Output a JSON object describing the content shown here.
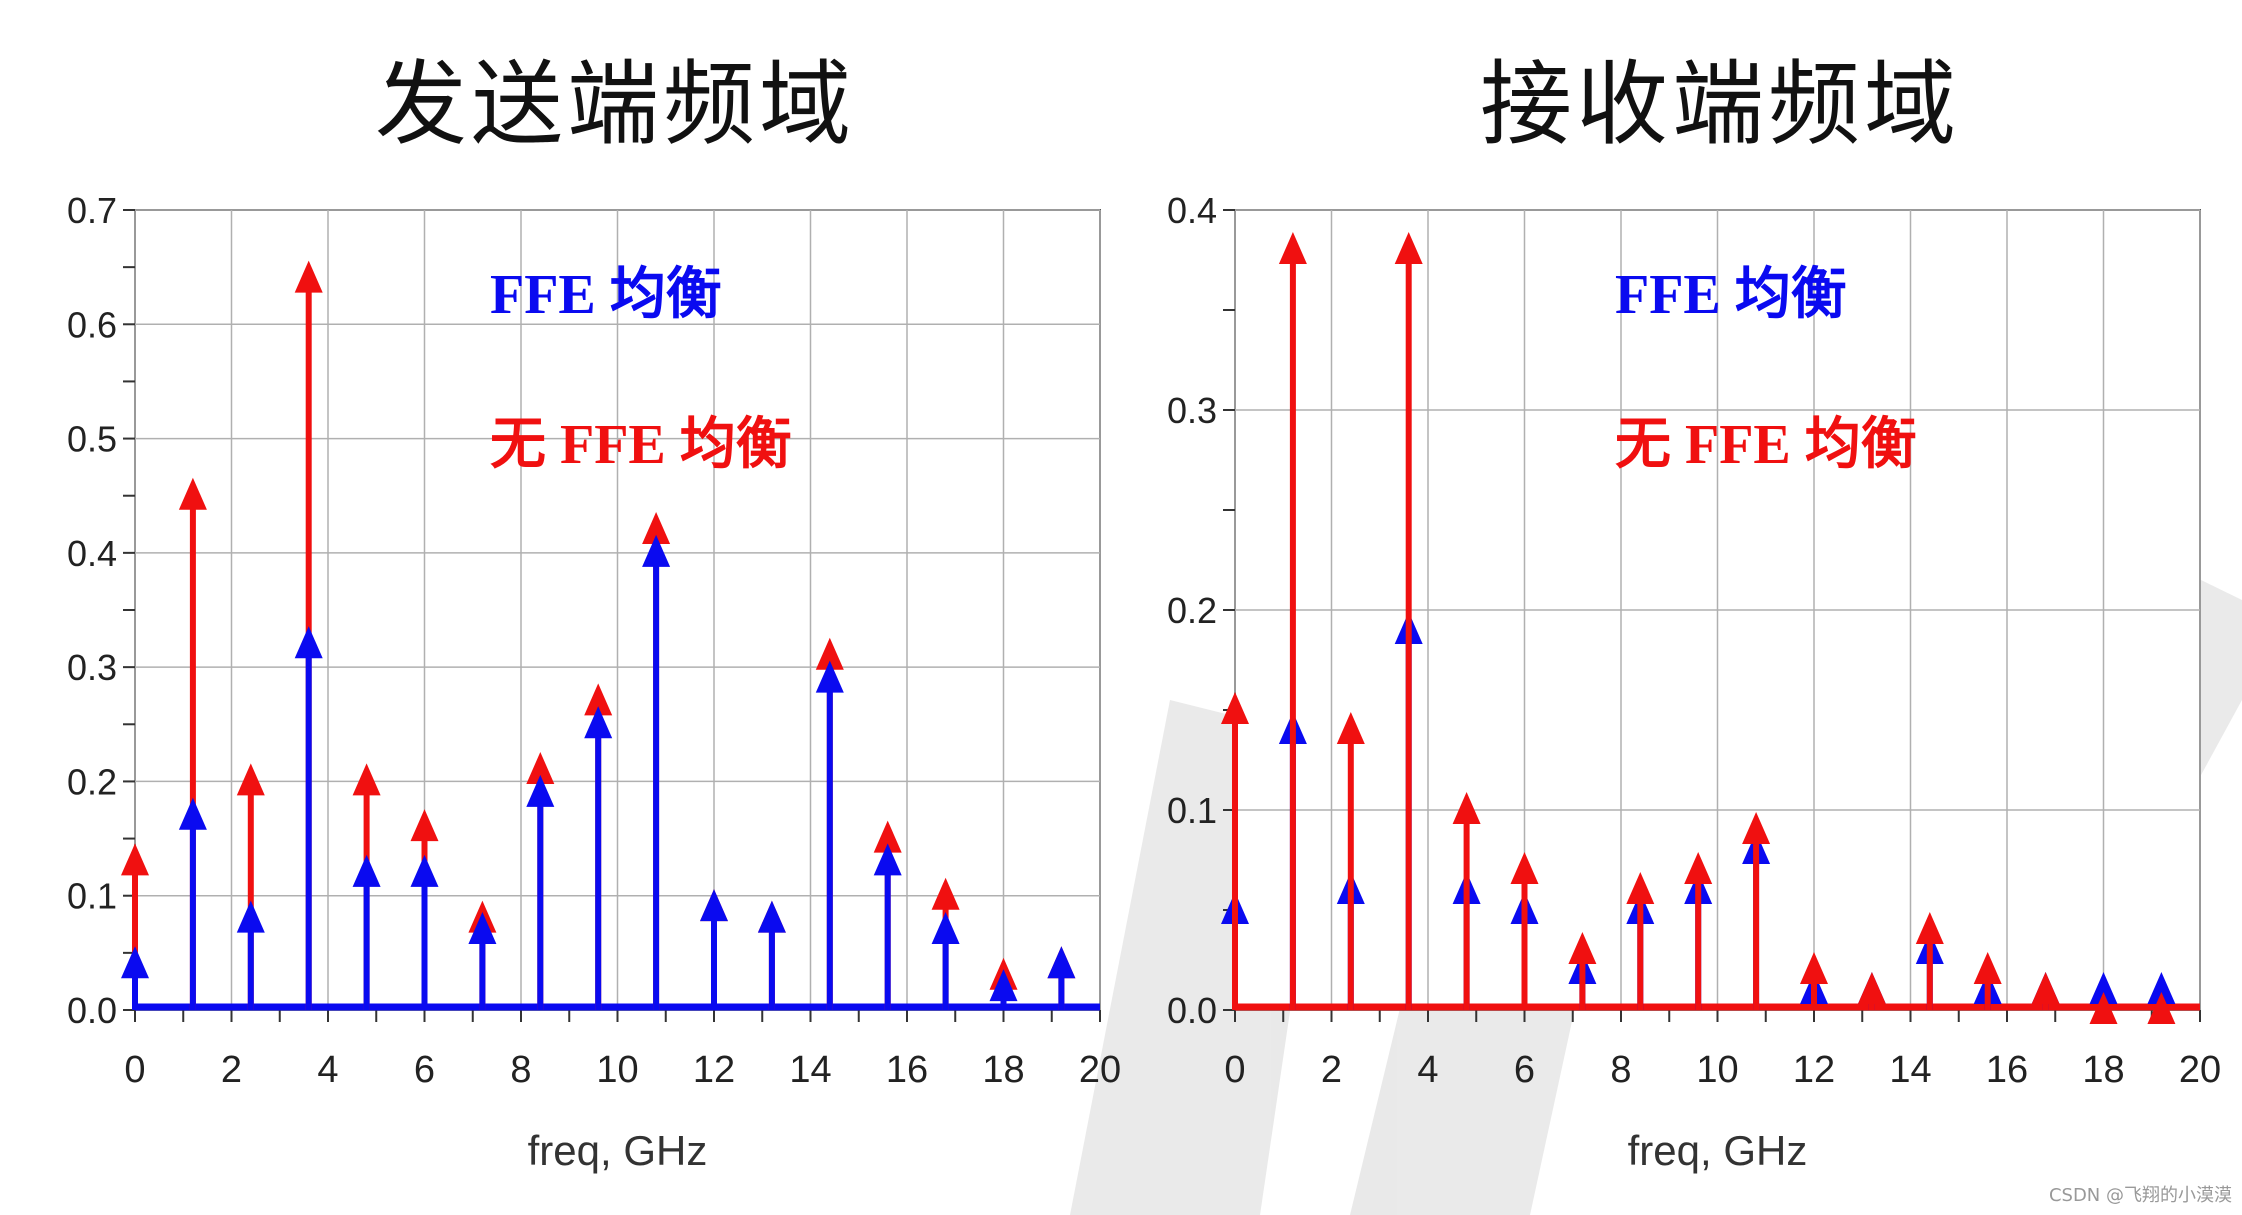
{
  "titles": {
    "left": "发送端频域",
    "right": "接收端频域"
  },
  "legend": {
    "ffe": "FFE 均衡",
    "no_ffe": "无 FFE 均衡"
  },
  "watermark": "CSDN @飞翔的小漠漠",
  "colors": {
    "ffe": "#0a0af0",
    "no_ffe": "#f01010",
    "grid": "#b0b0b0"
  },
  "chart_data": [
    {
      "type": "stem",
      "xlabel": "freq, GHz",
      "xlim": [
        0,
        20
      ],
      "ylim": [
        0,
        0.7
      ],
      "xticks": [
        0,
        2,
        4,
        6,
        8,
        10,
        12,
        14,
        16,
        18,
        20
      ],
      "yticks": [
        0.0,
        0.1,
        0.2,
        0.3,
        0.4,
        0.5,
        0.6,
        0.7
      ],
      "ytick_labels": [
        "0.0",
        "0.1",
        "0.2",
        "0.3",
        "0.4",
        "0.5",
        "0.6",
        "0.7"
      ],
      "series": [
        {
          "name": "无 FFE 均衡",
          "color": "no_ffe",
          "x": [
            0,
            1.2,
            2.4,
            3.6,
            4.8,
            6.0,
            7.2,
            8.4,
            9.6,
            10.8,
            12.0,
            13.2,
            14.4,
            15.6,
            16.8,
            18.0,
            19.2
          ],
          "y": [
            0.13,
            0.45,
            0.2,
            0.64,
            0.2,
            0.16,
            0.08,
            0.21,
            0.27,
            0.42,
            0.09,
            0.08,
            0.31,
            0.15,
            0.1,
            0.03,
            0.04
          ]
        },
        {
          "name": "FFE 均衡",
          "color": "ffe",
          "x": [
            0,
            1.2,
            2.4,
            3.6,
            4.8,
            6.0,
            7.2,
            8.4,
            9.6,
            10.8,
            12.0,
            13.2,
            14.4,
            15.6,
            16.8,
            18.0,
            19.2
          ],
          "y": [
            0.04,
            0.17,
            0.08,
            0.32,
            0.12,
            0.12,
            0.07,
            0.19,
            0.25,
            0.4,
            0.09,
            0.08,
            0.29,
            0.13,
            0.07,
            0.02,
            0.04
          ]
        }
      ]
    },
    {
      "type": "stem",
      "xlabel": "freq, GHz",
      "xlim": [
        0,
        20
      ],
      "ylim": [
        0,
        0.4
      ],
      "xticks": [
        0,
        2,
        4,
        6,
        8,
        10,
        12,
        14,
        16,
        18,
        20
      ],
      "yticks": [
        0.0,
        0.1,
        0.2,
        0.3,
        0.4
      ],
      "ytick_labels": [
        "0.0",
        "0.1",
        "0.2",
        "0.3",
        "0.4"
      ],
      "series": [
        {
          "name": "FFE 均衡",
          "color": "ffe",
          "x": [
            0,
            1.2,
            2.4,
            3.6,
            4.8,
            6.0,
            7.2,
            8.4,
            9.6,
            10.8,
            12.0,
            13.2,
            14.4,
            15.6,
            16.8,
            18.0,
            19.2
          ],
          "y": [
            0.05,
            0.14,
            0.06,
            0.19,
            0.06,
            0.05,
            0.02,
            0.05,
            0.06,
            0.08,
            0.01,
            0.01,
            0.03,
            0.01,
            0.01,
            0.01,
            0.01
          ]
        },
        {
          "name": "无 FFE 均衡",
          "color": "no_ffe",
          "x": [
            0,
            1.2,
            2.4,
            3.6,
            4.8,
            6.0,
            7.2,
            8.4,
            9.6,
            10.8,
            12.0,
            13.2,
            14.4,
            15.6,
            16.8,
            18.0,
            19.2
          ],
          "y": [
            0.15,
            0.38,
            0.14,
            0.38,
            0.1,
            0.07,
            0.03,
            0.06,
            0.07,
            0.09,
            0.02,
            0.01,
            0.04,
            0.02,
            0.01,
            0.0,
            0.0
          ]
        }
      ]
    }
  ]
}
